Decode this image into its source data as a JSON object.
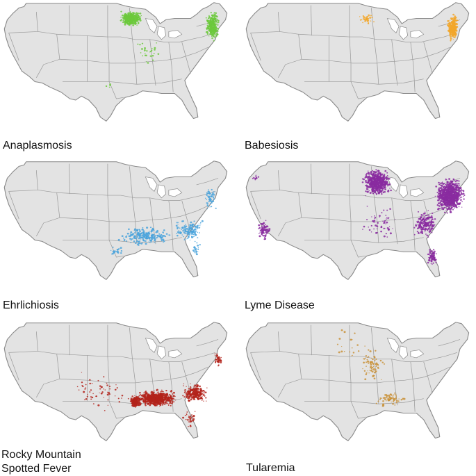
{
  "panels": [
    {
      "label": "Anaplasmosis",
      "color": "#6cc93c"
    },
    {
      "label": "Babesiosis",
      "color": "#f2a72b"
    },
    {
      "label": "Ehrlichiosis",
      "color": "#4aa3dc"
    },
    {
      "label": "Lyme Disease",
      "color": "#8a2ba0"
    },
    {
      "label": "Rocky Mountain\nSpotted Fever",
      "color": "#b3231b"
    },
    {
      "label": "Tularemia",
      "color": "#c9923a"
    }
  ]
}
